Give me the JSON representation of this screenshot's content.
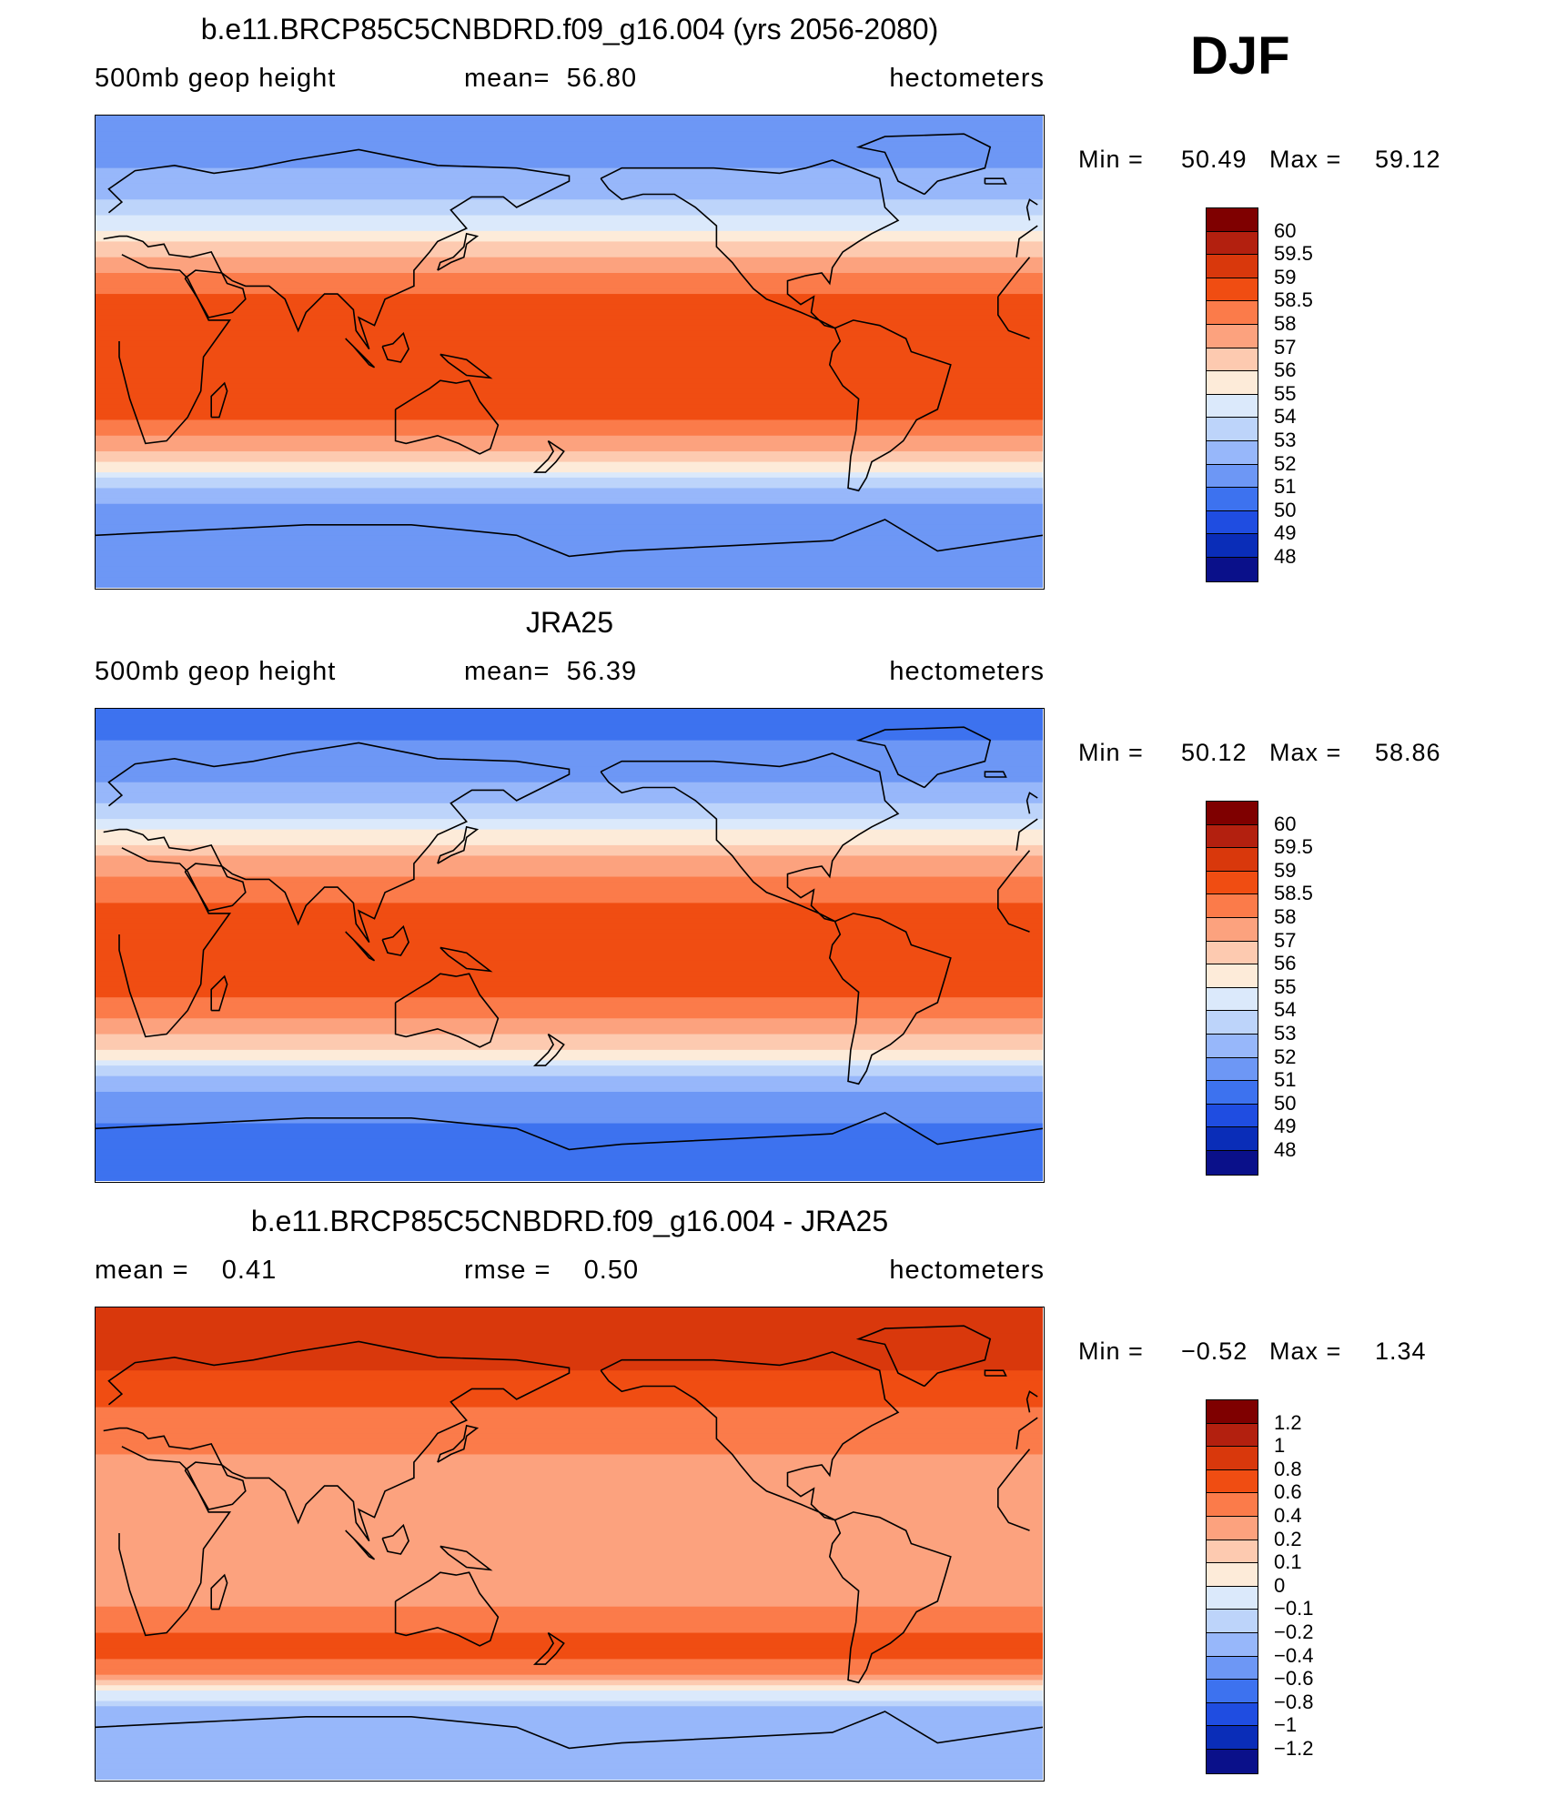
{
  "season_label": "DJF",
  "panels": [
    {
      "title": "b.e11.BRCP85C5CNBDRD.f09_g16.004 (yrs 2056-2080)",
      "left_label": "500mb geop height",
      "center_label": "mean=  56.80",
      "right_label": "hectometers",
      "min_label": "Min =",
      "min_value": "50.49",
      "max_label": "Max =",
      "max_value": "59.12",
      "colorbar_labels": [
        "60",
        "59.5",
        "59",
        "58.5",
        "58",
        "57",
        "56",
        "55",
        "54",
        "53",
        "52",
        "51",
        "50",
        "49",
        "48"
      ],
      "colorbar_colors": [
        "#7f0000",
        "#b3200f",
        "#d9380c",
        "#f04d12",
        "#fb7b4a",
        "#fca27e",
        "#fdcab0",
        "#fdebd9",
        "#dbe9fb",
        "#bdd4fa",
        "#97b7fa",
        "#6d97f5",
        "#3d72ef",
        "#1f4de1",
        "#0a2db8",
        "#0a108a"
      ],
      "zonal_profile": [
        {
          "lat": 90,
          "value": 51.0
        },
        {
          "lat": 75,
          "value": 51.6
        },
        {
          "lat": 60,
          "value": 52.8
        },
        {
          "lat": 50,
          "value": 54.2
        },
        {
          "lat": 40,
          "value": 56.3
        },
        {
          "lat": 30,
          "value": 58.0
        },
        {
          "lat": 20,
          "value": 58.7
        },
        {
          "lat": 10,
          "value": 58.8
        },
        {
          "lat": 0,
          "value": 58.8
        },
        {
          "lat": -10,
          "value": 58.9
        },
        {
          "lat": -20,
          "value": 58.8
        },
        {
          "lat": -30,
          "value": 58.2
        },
        {
          "lat": -40,
          "value": 56.5
        },
        {
          "lat": -50,
          "value": 53.5
        },
        {
          "lat": -60,
          "value": 51.6
        },
        {
          "lat": -75,
          "value": 51.2
        },
        {
          "lat": -90,
          "value": 51.0
        }
      ]
    },
    {
      "title": "JRA25",
      "left_label": "500mb geop height",
      "center_label": "mean=  56.39",
      "right_label": "hectometers",
      "min_label": "Min =",
      "min_value": "50.12",
      "max_label": "Max =",
      "max_value": "58.86",
      "colorbar_labels": [
        "60",
        "59.5",
        "59",
        "58.5",
        "58",
        "57",
        "56",
        "55",
        "54",
        "53",
        "52",
        "51",
        "50",
        "49",
        "48"
      ],
      "colorbar_colors": [
        "#7f0000",
        "#b3200f",
        "#d9380c",
        "#f04d12",
        "#fb7b4a",
        "#fca27e",
        "#fdcab0",
        "#fdebd9",
        "#dbe9fb",
        "#bdd4fa",
        "#97b7fa",
        "#6d97f5",
        "#3d72ef",
        "#1f4de1",
        "#0a2db8",
        "#0a108a"
      ],
      "zonal_profile": [
        {
          "lat": 90,
          "value": 50.6
        },
        {
          "lat": 75,
          "value": 51.1
        },
        {
          "lat": 60,
          "value": 52.2
        },
        {
          "lat": 50,
          "value": 53.7
        },
        {
          "lat": 40,
          "value": 55.8
        },
        {
          "lat": 30,
          "value": 57.6
        },
        {
          "lat": 20,
          "value": 58.4
        },
        {
          "lat": 10,
          "value": 58.6
        },
        {
          "lat": 0,
          "value": 58.6
        },
        {
          "lat": -10,
          "value": 58.6
        },
        {
          "lat": -20,
          "value": 58.5
        },
        {
          "lat": -30,
          "value": 57.9
        },
        {
          "lat": -40,
          "value": 56.0
        },
        {
          "lat": -50,
          "value": 53.0
        },
        {
          "lat": -60,
          "value": 51.2
        },
        {
          "lat": -75,
          "value": 50.8
        },
        {
          "lat": -90,
          "value": 50.6
        }
      ]
    },
    {
      "title": "b.e11.BRCP85C5CNBDRD.f09_g16.004 - JRA25",
      "left_label": "mean =    0.41",
      "center_label": "rmse =    0.50",
      "right_label": "hectometers",
      "min_label": "Min =",
      "min_value": "−0.52",
      "max_label": "Max =",
      "max_value": "1.34",
      "colorbar_labels": [
        "1.2",
        "1",
        "0.8",
        "0.6",
        "0.4",
        "0.2",
        "0.1",
        "0",
        "−0.1",
        "−0.2",
        "−0.4",
        "−0.6",
        "−0.8",
        "−1",
        "−1.2"
      ],
      "colorbar_colors": [
        "#7f0000",
        "#b3200f",
        "#d9380c",
        "#f04d12",
        "#fb7b4a",
        "#fca27e",
        "#fdcab0",
        "#fdebd9",
        "#dbe9fb",
        "#bdd4fa",
        "#97b7fa",
        "#6d97f5",
        "#3d72ef",
        "#1f4de1",
        "#0a2db8",
        "#0a108a"
      ],
      "zonal_profile": [
        {
          "lat": 90,
          "value": 0.9
        },
        {
          "lat": 75,
          "value": 0.95
        },
        {
          "lat": 60,
          "value": 0.7
        },
        {
          "lat": 45,
          "value": 0.5
        },
        {
          "lat": 30,
          "value": 0.35
        },
        {
          "lat": 15,
          "value": 0.3
        },
        {
          "lat": 0,
          "value": 0.3
        },
        {
          "lat": -15,
          "value": 0.3
        },
        {
          "lat": -30,
          "value": 0.45
        },
        {
          "lat": -40,
          "value": 0.75
        },
        {
          "lat": -48,
          "value": 0.5
        },
        {
          "lat": -55,
          "value": 0.05
        },
        {
          "lat": -62,
          "value": -0.2
        },
        {
          "lat": -75,
          "value": -0.25
        },
        {
          "lat": -90,
          "value": -0.2
        }
      ]
    }
  ]
}
